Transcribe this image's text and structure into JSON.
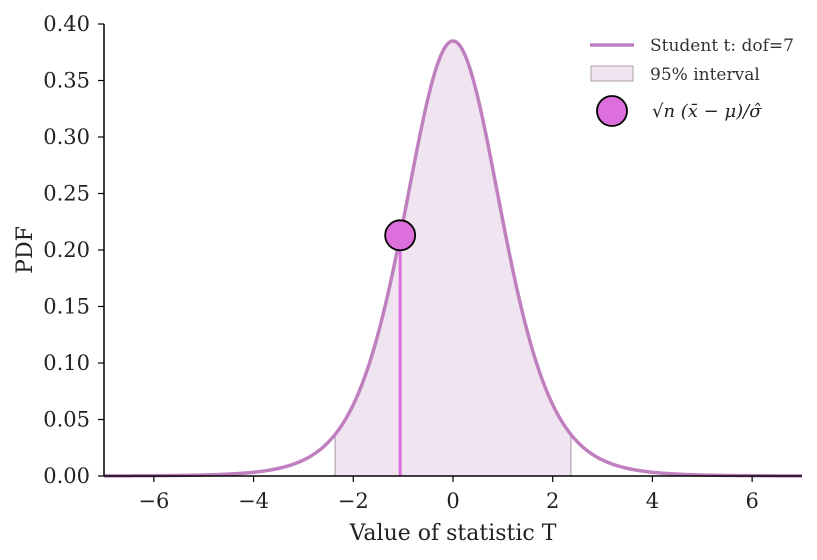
{
  "chart_data": {
    "type": "line",
    "xlabel": "Value of statistic T",
    "ylabel": "PDF",
    "xlim": [
      -7,
      7
    ],
    "ylim": [
      0,
      0.4
    ],
    "x_ticks": [
      -6,
      -4,
      -2,
      0,
      2,
      4,
      6
    ],
    "x_tick_labels": [
      "−6",
      "−4",
      "−2",
      "0",
      "2",
      "4",
      "6"
    ],
    "y_ticks": [
      0.0,
      0.05,
      0.1,
      0.15,
      0.2,
      0.25,
      0.3,
      0.35,
      0.4
    ],
    "y_tick_labels": [
      "0.00",
      "0.05",
      "0.10",
      "0.15",
      "0.20",
      "0.25",
      "0.30",
      "0.35",
      "0.40"
    ],
    "dof": 7,
    "series": [
      {
        "name": "Student t: dof=7",
        "kind": "pdf-curve",
        "color": "#c080c0"
      }
    ],
    "interval": {
      "name": "95% interval",
      "lower": -2.365,
      "upper": 2.365,
      "fill": "#f0e4f0",
      "edge": "#b0a0b0"
    },
    "statistic": {
      "name": "√n (x̄ − μ)/σ̂",
      "x": -1.06,
      "y": 0.213,
      "color": "#dd6fdd"
    },
    "legend_position": "top-right",
    "grid": false,
    "legend": {
      "curve_label": "Student t: dof=7",
      "interval_label": "95% interval",
      "point_label": "√n (x̄ − μ)/σ̂"
    }
  }
}
